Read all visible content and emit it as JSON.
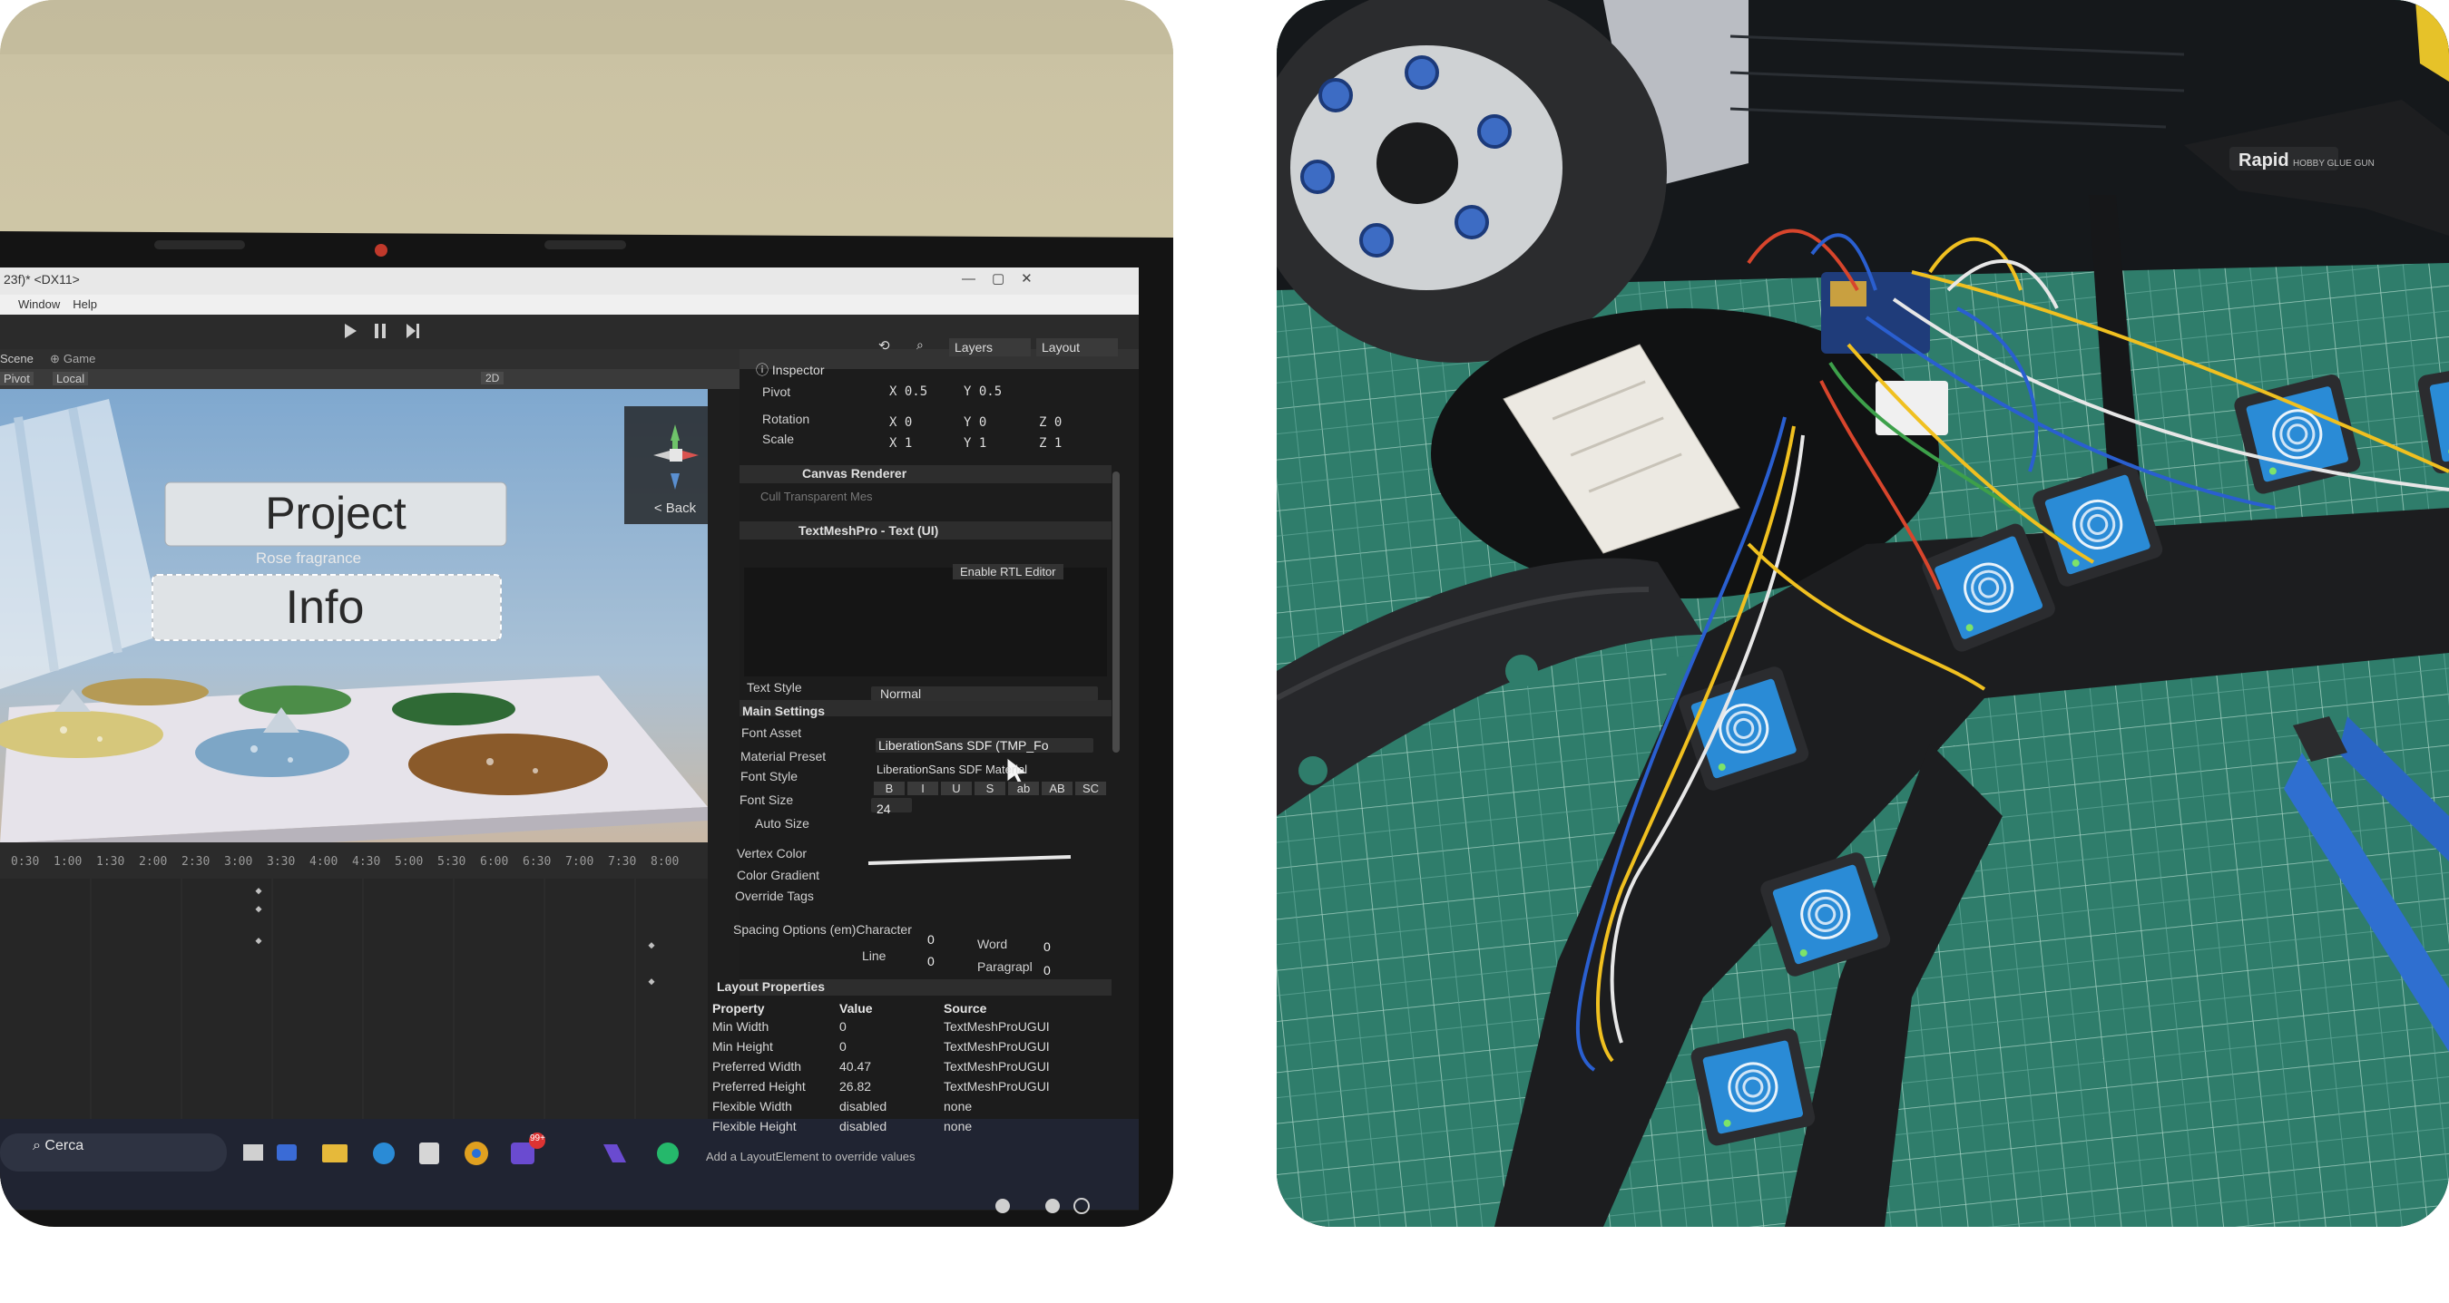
{
  "editor": {
    "title_fragment": "23f)* <DX11>",
    "menu": [
      "Window",
      "Help"
    ],
    "tabs": {
      "scene": "Scene",
      "game": "Game"
    },
    "scene_toolbar": {
      "pivot": "Pivot",
      "local": "Local",
      "mode_2d": "2D"
    },
    "top_right": {
      "layers": "Layers",
      "layout": "Layout"
    },
    "gizmo_back": "< Back",
    "scene_buttons": {
      "project": "Project",
      "info": "Info",
      "subtitle": "Rose fragrance"
    },
    "timeline_ticks": [
      "0:30",
      "1:00",
      "1:30",
      "2:00",
      "2:30",
      "3:00",
      "3:30",
      "4:00",
      "4:30",
      "5:00",
      "5:30",
      "6:00",
      "6:30",
      "7:00",
      "7:30",
      "8:00"
    ],
    "inspector": {
      "tab": "Inspector",
      "pivot": {
        "label": "Pivot",
        "x": "X 0.5",
        "y": "Y 0.5"
      },
      "rotation": {
        "label": "Rotation",
        "x": "X 0",
        "y": "Y 0",
        "z": "Z 0"
      },
      "scale": {
        "label": "Scale",
        "x": "X 1",
        "y": "Y 1",
        "z": "Z 1"
      },
      "canvas_renderer": "Canvas Renderer",
      "cull": "Cull Transparent Mes",
      "tmp_component": "TextMeshPro - Text (UI)",
      "rtl": "Enable RTL Editor",
      "text_style": {
        "label": "Text Style",
        "value": "Normal"
      },
      "main_settings": "Main Settings",
      "font_asset": {
        "label": "Font Asset",
        "value": "LiberationSans SDF (TMP_Fo"
      },
      "material_preset": {
        "label": "Material Preset",
        "value": "LiberationSans SDF Material"
      },
      "font_style": {
        "label": "Font Style",
        "buttons": [
          "B",
          "I",
          "U",
          "S",
          "ab",
          "AB",
          "SC"
        ]
      },
      "font_size": {
        "label": "Font Size",
        "value": "24"
      },
      "auto_size": "Auto Size",
      "vertex_color": "Vertex Color",
      "color_gradient": "Color Gradient",
      "override_tags": "Override Tags",
      "spacing": {
        "label": "Spacing Options (em)",
        "character": "Character",
        "character_value": "0",
        "word": "Word",
        "word_value": "0",
        "line": "Line",
        "line_value": "0",
        "paragraph": "Paragrapl",
        "paragraph_value": "0"
      },
      "layout_properties": {
        "title": "Layout Properties",
        "headers": [
          "Property",
          "Value",
          "Source"
        ],
        "rows": [
          [
            "Min Width",
            "0",
            "TextMeshProUGUI"
          ],
          [
            "Min Height",
            "0",
            "TextMeshProUGUI"
          ],
          [
            "Preferred Width",
            "40.47",
            "TextMeshProUGUI"
          ],
          [
            "Preferred Height",
            "26.82",
            "TextMeshProUGUI"
          ],
          [
            "Flexible Width",
            "disabled",
            "none"
          ],
          [
            "Flexible Height",
            "disabled",
            "none"
          ]
        ],
        "footer": "Add a LayoutElement to override values"
      }
    },
    "taskbar": {
      "search_placeholder": "Cerca",
      "badge": "99+"
    }
  },
  "photo_right": {
    "glue_gun_brand": "Rapid",
    "glue_gun_model": "HOBBY GLUE GUN"
  },
  "colors": {
    "desk": "#d8cfae",
    "editor_bg": "#1e1e1e",
    "sky": "#8fb1cf",
    "cutting_mat": "#2f7d6b",
    "print_black": "#1b1c1e",
    "sensor_blue": "#2a8bd6"
  }
}
